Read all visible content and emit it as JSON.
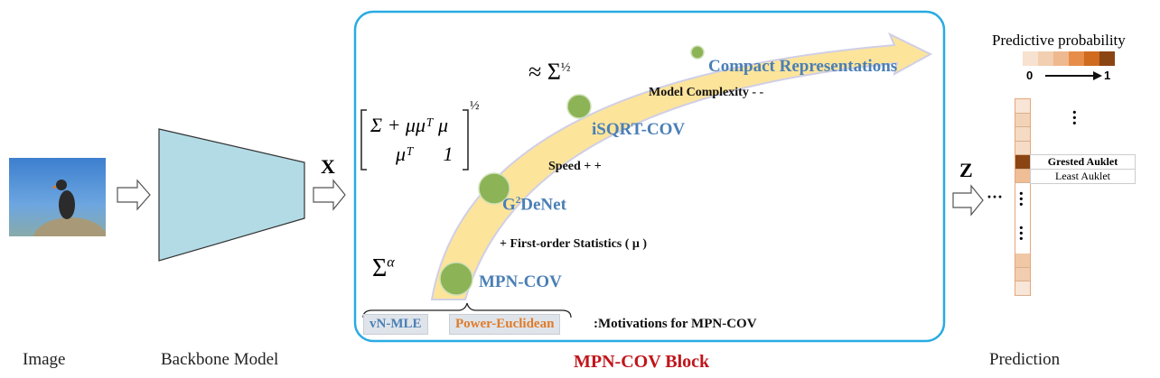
{
  "labels": {
    "image": "Image",
    "backbone": "Backbone Model",
    "block": "MPN-COV Block",
    "prediction": "Prediction",
    "x": "X",
    "z": "Z",
    "dots": "···"
  },
  "block": {
    "compact": "Compact Representations",
    "model_complexity": "Model Complexity - -",
    "isqrt": "iSQRT-COV",
    "speed": "Speed + +",
    "g2denet_base": "G",
    "g2denet_sup": "2",
    "g2denet_rest": "DeNet",
    "first_order": "+ First-order Statistics ( μ )",
    "mpncov": "MPN-COV",
    "sigma_alpha": "Σ",
    "sigma_alpha_sup": "α",
    "approx_sigma": "≈ Σ",
    "half": "½",
    "matrix_row1": "Σ + μμᵀ μ",
    "matrix_row2": "μᵀ      1",
    "vn_mle": "vN-MLE",
    "power_euclidean": "Power-Euclidean",
    "motivations": ":Motivations for MPN-COV"
  },
  "legend": {
    "title": "Predictive probability",
    "min": "0",
    "max": "1",
    "colors": [
      "#f7e1cf",
      "#f2cfb1",
      "#eeb98f",
      "#e78d4a",
      "#cf6a1f",
      "#8b4513"
    ]
  },
  "prediction": {
    "classes": [
      {
        "label": "Grested Auklet"
      },
      {
        "label": "Least Auklet"
      }
    ],
    "cells_top": [
      "#f8e5d6",
      "#f3d3b8",
      "#f5dac4",
      "#f6dcc6",
      "#8b4513",
      "#efbe96"
    ],
    "cells_bottom": [
      "#f0c8a6",
      "#f2cdb0",
      "#f8e6d8"
    ]
  },
  "colors": {
    "block_border": "#29abe2",
    "block_title": "#c0151b",
    "method": "#4a7fb5",
    "power_euclidean": "#e07b2a",
    "backbone": "#b3dbe6",
    "arc": "#fde49b",
    "node": "#8cb356"
  }
}
